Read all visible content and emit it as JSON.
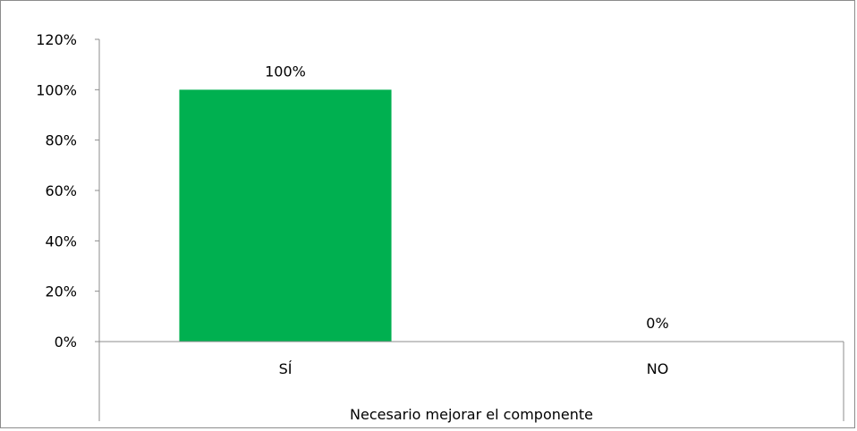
{
  "chart_data": {
    "type": "bar",
    "categories": [
      "SÍ",
      "NO"
    ],
    "values": [
      100,
      0
    ],
    "data_labels": [
      "100%",
      "0%"
    ],
    "ytick_labels": [
      "0%",
      "20%",
      "40%",
      "60%",
      "80%",
      "100%",
      "120%"
    ],
    "ylim": [
      0,
      120
    ],
    "xlabel": "Necesario mejorar el componente",
    "ylabel": "",
    "title": "",
    "grid": false,
    "legend": "none",
    "bar_color": "#00b050",
    "axis_color": "#8c8c8c"
  }
}
